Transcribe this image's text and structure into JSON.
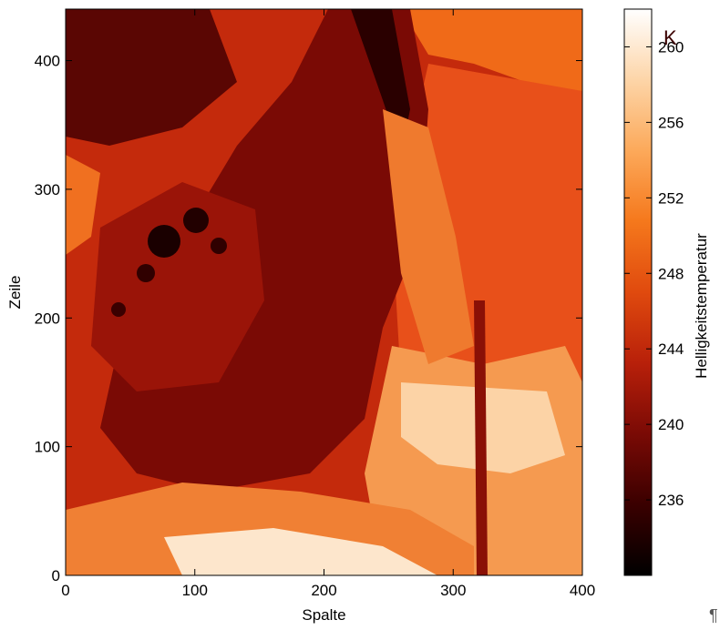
{
  "chart_data": {
    "type": "heatmap",
    "title": "",
    "xlabel": "Spalte",
    "ylabel": "Zeile",
    "xlim": [
      0,
      400
    ],
    "ylim": [
      0,
      440
    ],
    "x_ticks": [
      0,
      100,
      200,
      300,
      400
    ],
    "y_ticks": [
      0,
      100,
      200,
      300,
      400
    ],
    "colorbar": {
      "label": "Helligkeitstemperatur",
      "unit": "K",
      "range": [
        232,
        262
      ],
      "ticks": [
        236,
        240,
        244,
        248,
        252,
        256,
        260
      ],
      "colormap": [
        "#000000",
        "#3a0000",
        "#7a0a05",
        "#b8200a",
        "#e04a0e",
        "#f5781c",
        "#fca95a",
        "#fdd5a8",
        "#ffffff"
      ]
    },
    "colors": {
      "cold": "#1a0000",
      "mid": "#b8200a",
      "warm": "#f5781c",
      "hot": "#fde6cc"
    }
  },
  "footer": {
    "pilcrow": "¶"
  }
}
